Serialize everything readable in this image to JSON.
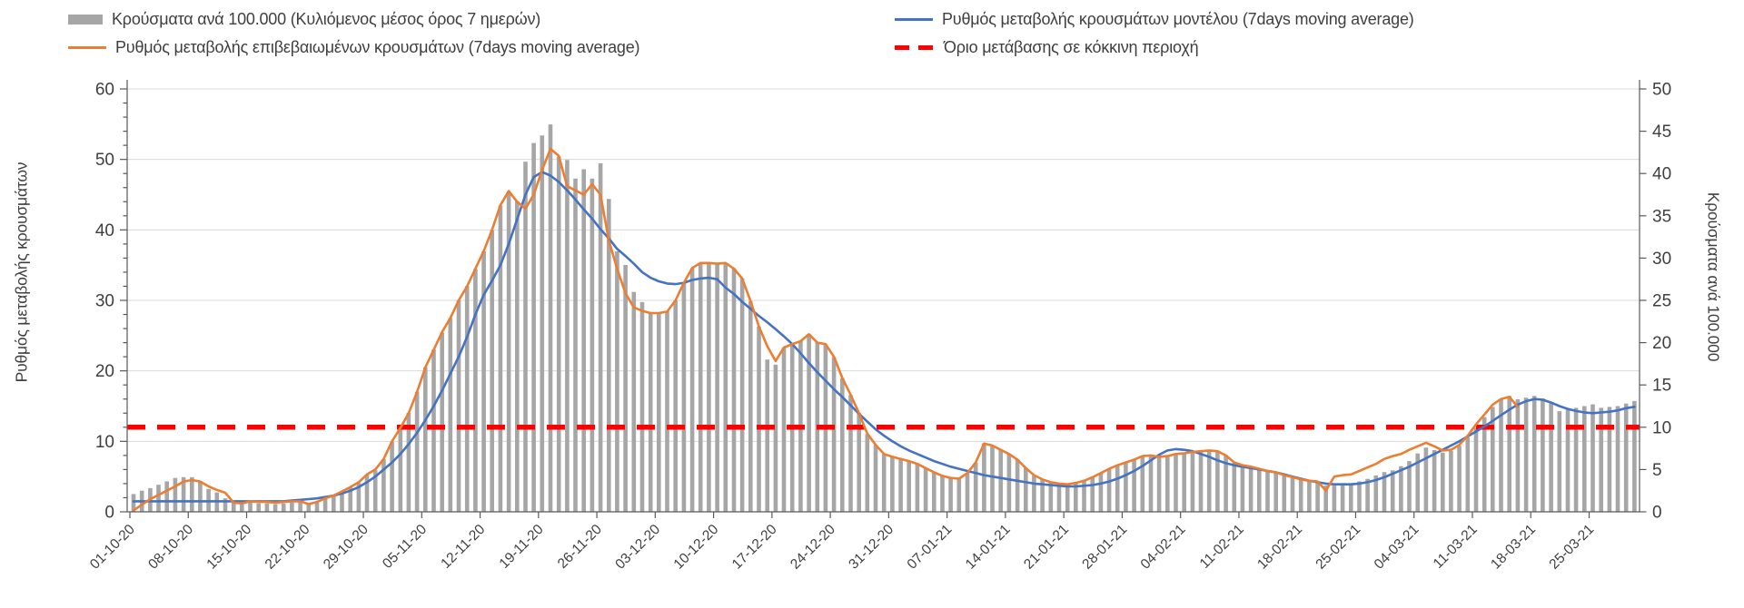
{
  "legend": {
    "items": [
      {
        "label": "Κρούσματα ανά 100.000 (Κυλιόμενος μέσος όρος 7 ημερών)",
        "color": "#a6a6a6",
        "swatch": "bar"
      },
      {
        "label": "Ρυθμός μεταβολής κρουσμάτων μοντέλου (7days moving average)",
        "color": "#4472c4",
        "swatch": "line"
      },
      {
        "label": "Ρυθμός μεταβολής επιβεβαιωμένων κρουσμάτων (7days moving average)",
        "color": "#ed7d31",
        "swatch": "line"
      },
      {
        "label": "Όριο μετάβασης σε κόκκινη περιοχή",
        "color": "#ff0000",
        "swatch": "dash"
      }
    ]
  },
  "chart_data": {
    "type": "combo-bar-line",
    "title": "",
    "start_date": "01-10-20",
    "end_date": "30-03-21",
    "x_tick_labels": [
      "01-10-20",
      "08-10-20",
      "15-10-20",
      "22-10-20",
      "29-10-20",
      "05-11-20",
      "12-11-20",
      "19-11-20",
      "26-11-20",
      "03-12-20",
      "10-12-20",
      "17-12-20",
      "24-12-20",
      "31-12-20",
      "07-01-21",
      "14-01-21",
      "21-01-21",
      "28-01-21",
      "04-02-21",
      "11-02-21",
      "18-02-21",
      "25-02-21",
      "04-03-21",
      "11-03-21",
      "18-03-21",
      "25-03-21"
    ],
    "x_tick_interval_days": 7,
    "grid": "horizontal",
    "legend_position": "top",
    "y_left": {
      "title": "Ρυθμός μεταβολής κρουσμάτων",
      "min": 0,
      "max": 60,
      "tick_step": 10,
      "minor_tick_step": 2,
      "tick_labels": [
        0,
        10,
        20,
        30,
        40,
        50,
        60
      ]
    },
    "y_right": {
      "title": "Κρούσματα ανά 100.000",
      "min": 0,
      "max": 50,
      "tick_step": 5,
      "tick_labels": [
        0,
        5,
        10,
        15,
        20,
        25,
        30,
        35,
        40,
        45,
        50
      ]
    },
    "threshold": {
      "label": "Όριο μετάβασης σε κόκκινη περιοχή",
      "value": 10,
      "axis": "right",
      "color": "#ff0000",
      "style": "dashed"
    },
    "series": [
      {
        "name": "Κρούσματα ανά 100.000 (Κυλιόμενος μέσος όρος 7 ημερών)",
        "type": "bar",
        "axis": "right",
        "color": "#a6a6a6",
        "values": [
          2.1,
          2.5,
          2.8,
          3.2,
          3.6,
          4.0,
          4.1,
          4.1,
          3.6,
          2.7,
          2.3,
          1.6,
          1.2,
          1.2,
          1.3,
          1.0,
          1.0,
          0.9,
          1.0,
          1.1,
          1.2,
          0.9,
          1.1,
          1.5,
          2.0,
          2.4,
          2.9,
          3.4,
          4.4,
          4.9,
          6.2,
          8.3,
          9.9,
          11.7,
          14.2,
          17.1,
          19.2,
          21.2,
          22.9,
          25.0,
          26.7,
          28.7,
          30.8,
          33.3,
          36.2,
          37.9,
          36.7,
          41.4,
          43.6,
          44.5,
          45.8,
          42.0,
          41.6,
          39.4,
          40.5,
          39.4,
          41.2,
          37.0,
          30.8,
          29.2,
          26.0,
          24.8,
          23.6,
          23.5,
          23.7,
          25.0,
          27.1,
          28.8,
          29.4,
          29.4,
          29.3,
          29.4,
          28.8,
          27.6,
          24.9,
          21.9,
          18.0,
          17.4,
          19.4,
          19.8,
          20.2,
          21.0,
          20.0,
          19.8,
          18.3,
          15.8,
          13.8,
          11.7,
          9.2,
          7.9,
          6.8,
          6.5,
          6.2,
          6.0,
          5.7,
          5.2,
          4.7,
          4.2,
          4.0,
          3.9,
          4.6,
          5.8,
          8.1,
          7.8,
          7.3,
          6.8,
          6.2,
          5.2,
          4.3,
          3.8,
          3.5,
          3.3,
          3.2,
          3.4,
          3.7,
          4.1,
          4.6,
          5.1,
          5.5,
          5.8,
          6.2,
          6.6,
          6.7,
          6.5,
          6.6,
          6.8,
          6.9,
          7.1,
          7.2,
          7.2,
          7.2,
          6.7,
          5.8,
          5.5,
          5.3,
          5.1,
          4.8,
          4.7,
          4.3,
          4.1,
          3.8,
          3.7,
          3.6,
          3.1,
          3.1,
          3.2,
          3.3,
          3.6,
          3.9,
          4.3,
          4.7,
          4.9,
          5.4,
          6.0,
          6.9,
          7.6,
          7.3,
          7.0,
          7.2,
          7.8,
          8.8,
          9.9,
          11.2,
          12.4,
          13.3,
          13.7,
          13.3,
          13.5,
          13.7,
          13.4,
          12.8,
          11.9,
          12.1,
          12.3,
          12.5,
          12.7,
          12.3,
          12.4,
          12.5,
          12.8,
          13.1
        ]
      },
      {
        "name": "Ρυθμός μεταβολής επιβεβαιωμένων κρουσμάτων (7days moving average)",
        "type": "line",
        "axis": "left",
        "color": "#ed7d31",
        "values": [
          0.2,
          1.0,
          1.8,
          2.4,
          3.0,
          3.6,
          4.3,
          4.5,
          4.3,
          3.6,
          3.1,
          2.7,
          1.3,
          1.2,
          1.5,
          1.4,
          1.4,
          1.3,
          1.4,
          1.5,
          1.5,
          1.1,
          1.4,
          1.9,
          2.3,
          2.9,
          3.5,
          4.2,
          5.3,
          6.0,
          7.5,
          10.0,
          11.9,
          14.0,
          17.0,
          20.5,
          23.0,
          25.5,
          27.5,
          30.0,
          32.0,
          34.5,
          37.0,
          40.0,
          43.5,
          45.5,
          44.0,
          43.0,
          45.0,
          48.5,
          51.5,
          50.5,
          46.2,
          45.6,
          45.0,
          46.5,
          45.0,
          38.5,
          34.5,
          31.0,
          29.0,
          28.5,
          28.2,
          28.2,
          28.4,
          30.0,
          32.5,
          34.6,
          35.3,
          35.3,
          35.2,
          35.3,
          34.5,
          33.1,
          29.9,
          26.3,
          23.5,
          21.4,
          23.3,
          23.8,
          24.2,
          25.2,
          24.0,
          23.8,
          22.0,
          19.0,
          16.6,
          14.0,
          11.1,
          9.5,
          8.2,
          7.8,
          7.5,
          7.2,
          6.8,
          6.2,
          5.6,
          5.1,
          4.8,
          4.7,
          5.5,
          7.0,
          9.7,
          9.4,
          8.8,
          8.2,
          7.4,
          6.2,
          5.2,
          4.6,
          4.2,
          4.0,
          3.9,
          4.1,
          4.4,
          4.9,
          5.5,
          6.1,
          6.6,
          7.0,
          7.4,
          7.9,
          8.0,
          7.8,
          7.9,
          8.2,
          8.3,
          8.5,
          8.6,
          8.7,
          8.6,
          8.0,
          7.0,
          6.6,
          6.4,
          6.1,
          5.8,
          5.6,
          5.2,
          4.9,
          4.6,
          4.4,
          4.3,
          3.0,
          5.0,
          5.2,
          5.3,
          5.8,
          6.3,
          6.8,
          7.5,
          7.9,
          8.2,
          8.8,
          9.3,
          9.8,
          9.3,
          8.7,
          8.8,
          9.5,
          10.8,
          12.4,
          13.8,
          15.2,
          16.0,
          16.3,
          14.9
        ]
      },
      {
        "name": "Ρυθμός μεταβολής κρουσμάτων μοντέλου (7days moving average)",
        "type": "line",
        "axis": "left",
        "color": "#4472c4",
        "values": [
          1.5,
          1.5,
          1.5,
          1.5,
          1.5,
          1.5,
          1.5,
          1.5,
          1.5,
          1.5,
          1.5,
          1.5,
          1.5,
          1.5,
          1.5,
          1.5,
          1.5,
          1.5,
          1.5,
          1.6,
          1.7,
          1.8,
          1.9,
          2.1,
          2.3,
          2.6,
          3.0,
          3.5,
          4.2,
          5.0,
          6.0,
          7.0,
          8.2,
          9.6,
          11.2,
          13.0,
          15.0,
          17.2,
          19.6,
          22.0,
          24.8,
          28.0,
          30.8,
          32.8,
          35.0,
          38.0,
          41.5,
          45.0,
          47.5,
          48.2,
          47.7,
          46.8,
          45.6,
          44.3,
          42.9,
          41.6,
          40.1,
          38.8,
          37.3,
          36.3,
          35.2,
          34.0,
          33.2,
          32.7,
          32.4,
          32.3,
          32.5,
          32.9,
          33.1,
          33.2,
          33.0,
          31.8,
          30.9,
          29.8,
          28.8,
          27.8,
          26.9,
          25.9,
          24.9,
          23.8,
          22.5,
          21.1,
          19.8,
          18.6,
          17.4,
          16.3,
          15.1,
          13.9,
          12.8,
          11.7,
          10.8,
          10.0,
          9.3,
          8.7,
          8.2,
          7.7,
          7.2,
          6.8,
          6.4,
          6.1,
          5.8,
          5.5,
          5.2,
          5.0,
          4.8,
          4.6,
          4.4,
          4.2,
          4.0,
          3.9,
          3.8,
          3.7,
          3.6,
          3.6,
          3.7,
          3.8,
          4.0,
          4.3,
          4.7,
          5.2,
          5.8,
          6.5,
          7.3,
          8.1,
          8.7,
          8.9,
          8.8,
          8.6,
          8.2,
          7.8,
          7.3,
          6.9,
          6.6,
          6.4,
          6.2,
          6.0,
          5.8,
          5.6,
          5.3,
          5.0,
          4.7,
          4.4,
          4.2,
          4.0,
          3.9,
          3.9,
          3.9,
          4.0,
          4.2,
          4.5,
          4.9,
          5.4,
          5.9,
          6.4,
          7.0,
          7.6,
          8.2,
          8.8,
          9.4,
          10.0,
          10.7,
          11.4,
          12.1,
          12.9,
          13.7,
          14.5,
          15.2,
          15.7,
          16.0,
          15.9,
          15.5,
          15.0,
          14.6,
          14.3,
          14.1,
          14.0,
          14.1,
          14.2,
          14.4,
          14.7,
          14.9
        ]
      }
    ],
    "style": {
      "bar_color": "#a6a6a6",
      "confirmed_line_color": "#ed7d31",
      "model_line_color": "#4472c4",
      "threshold_color": "#ff0000",
      "gridline_color": "#d9d9d9",
      "axis_color": "#595959",
      "text_color": "#3f3f3f"
    }
  }
}
